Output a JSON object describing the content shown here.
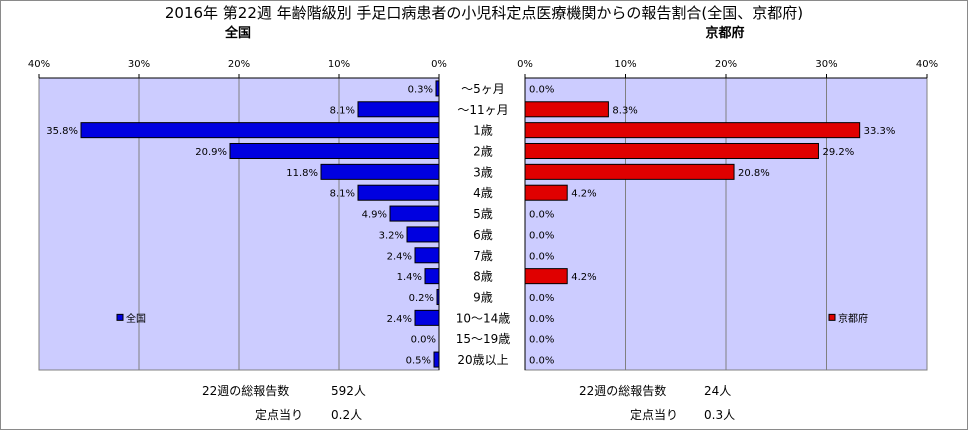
{
  "title": "2016年 第22週 年齢階級別 手足口病患者の小児科定点医療機関からの報告割合(全国、京都府)",
  "colors": {
    "plot_bg": "#ccccff",
    "national": "#0000e0",
    "kyoto": "#e00000",
    "bar_border": "#000000"
  },
  "chart_data": [
    {
      "type": "bar",
      "orientation": "horizontal-reversed",
      "title": "全国",
      "legend": "全国",
      "legend_position": "bottom-left",
      "xlim": [
        0,
        40
      ],
      "xticks": [
        "40%",
        "30%",
        "20%",
        "10%",
        "0%"
      ],
      "categories": [
        "〜5ヶ月",
        "〜11ヶ月",
        "1歳",
        "2歳",
        "3歳",
        "4歳",
        "5歳",
        "6歳",
        "7歳",
        "8歳",
        "9歳",
        "10〜14歳",
        "15〜19歳",
        "20歳以上"
      ],
      "values": [
        0.3,
        8.1,
        35.8,
        20.9,
        11.8,
        8.1,
        4.9,
        3.2,
        2.4,
        1.4,
        0.2,
        2.4,
        0.0,
        0.5
      ],
      "labels": [
        "0.3%",
        "8.1%",
        "35.8%",
        "20.9%",
        "11.8%",
        "8.1%",
        "4.9%",
        "3.2%",
        "2.4%",
        "1.4%",
        "0.2%",
        "2.4%",
        "0.0%",
        "0.5%"
      ],
      "grid": true
    },
    {
      "type": "bar",
      "orientation": "horizontal",
      "title": "京都府",
      "legend": "京都府",
      "legend_position": "bottom-right",
      "xlim": [
        0,
        40
      ],
      "xticks": [
        "0%",
        "10%",
        "20%",
        "30%",
        "40%"
      ],
      "categories": [
        "〜5ヶ月",
        "〜11ヶ月",
        "1歳",
        "2歳",
        "3歳",
        "4歳",
        "5歳",
        "6歳",
        "7歳",
        "8歳",
        "9歳",
        "10〜14歳",
        "15〜19歳",
        "20歳以上"
      ],
      "values": [
        0.0,
        8.3,
        33.3,
        29.2,
        20.8,
        4.2,
        0.0,
        0.0,
        0.0,
        4.2,
        0.0,
        0.0,
        0.0,
        0.0
      ],
      "labels": [
        "0.0%",
        "8.3%",
        "33.3%",
        "29.2%",
        "20.8%",
        "4.2%",
        "0.0%",
        "0.0%",
        "0.0%",
        "4.2%",
        "0.0%",
        "0.0%",
        "0.0%",
        "0.0%"
      ],
      "grid": true
    }
  ],
  "footer": {
    "national": {
      "total_label": "22週の総報告数",
      "total_value": "592人",
      "per_label": "定点当り",
      "per_value": "0.2人"
    },
    "kyoto": {
      "total_label": "22週の総報告数",
      "total_value": "24人",
      "per_label": "定点当り",
      "per_value": "0.3人"
    }
  }
}
